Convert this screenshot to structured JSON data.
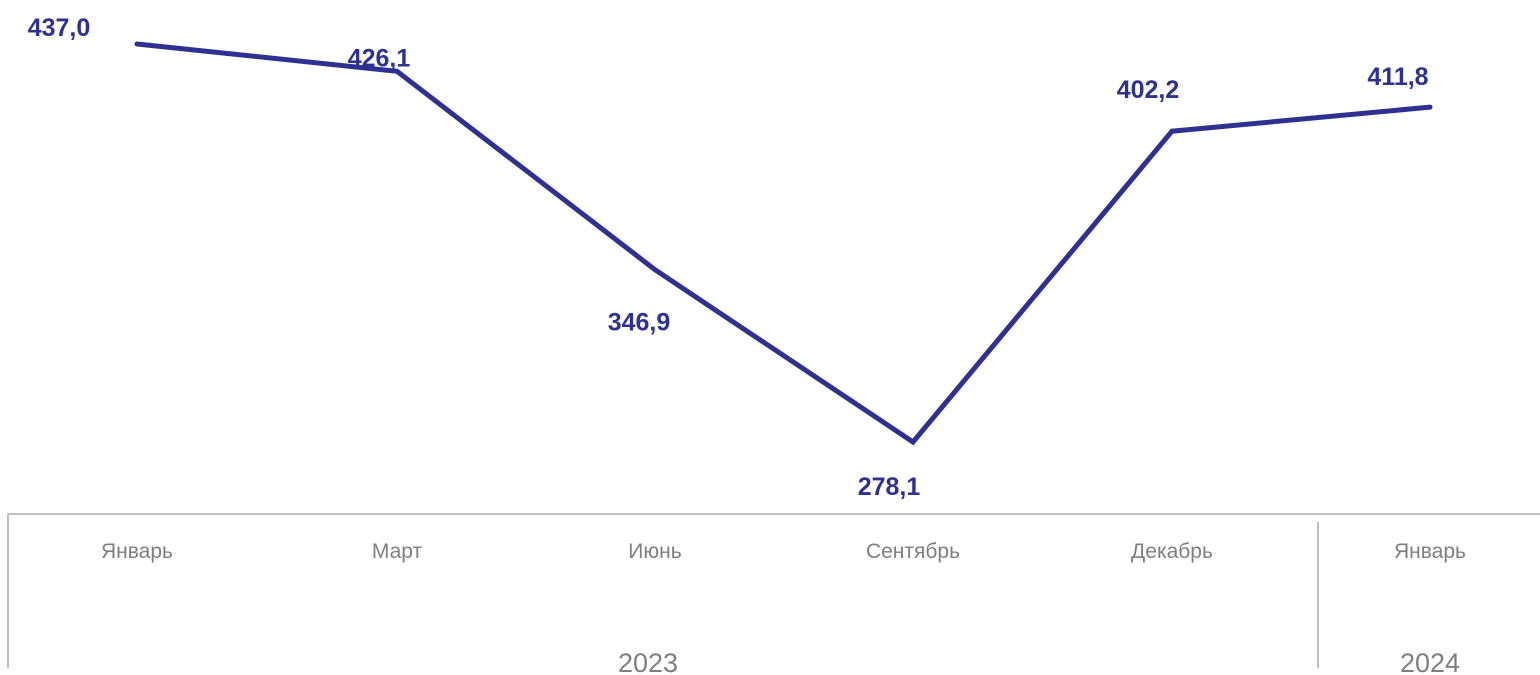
{
  "chart_data": {
    "type": "line",
    "title": "",
    "xlabel": "",
    "ylabel": "",
    "categories": [
      "Январь",
      "Март",
      "Июнь",
      "Сентябрь",
      "Декабрь",
      "Январь"
    ],
    "groups": [
      {
        "label": "2023",
        "count": 5
      },
      {
        "label": "2024",
        "count": 1
      }
    ],
    "series": [
      {
        "values": [
          437.0,
          426.1,
          346.9,
          278.1,
          402.2,
          411.8
        ],
        "labels": [
          "437,0",
          "426,1",
          "346,9",
          "278,1",
          "402,2",
          "411,8"
        ],
        "color": "#2e3192"
      }
    ],
    "ylim": [
      250,
      445
    ],
    "grid": false,
    "legend": "none",
    "axis_color": "#bfbfbf",
    "tick_label_color": "#7f7f7f"
  }
}
